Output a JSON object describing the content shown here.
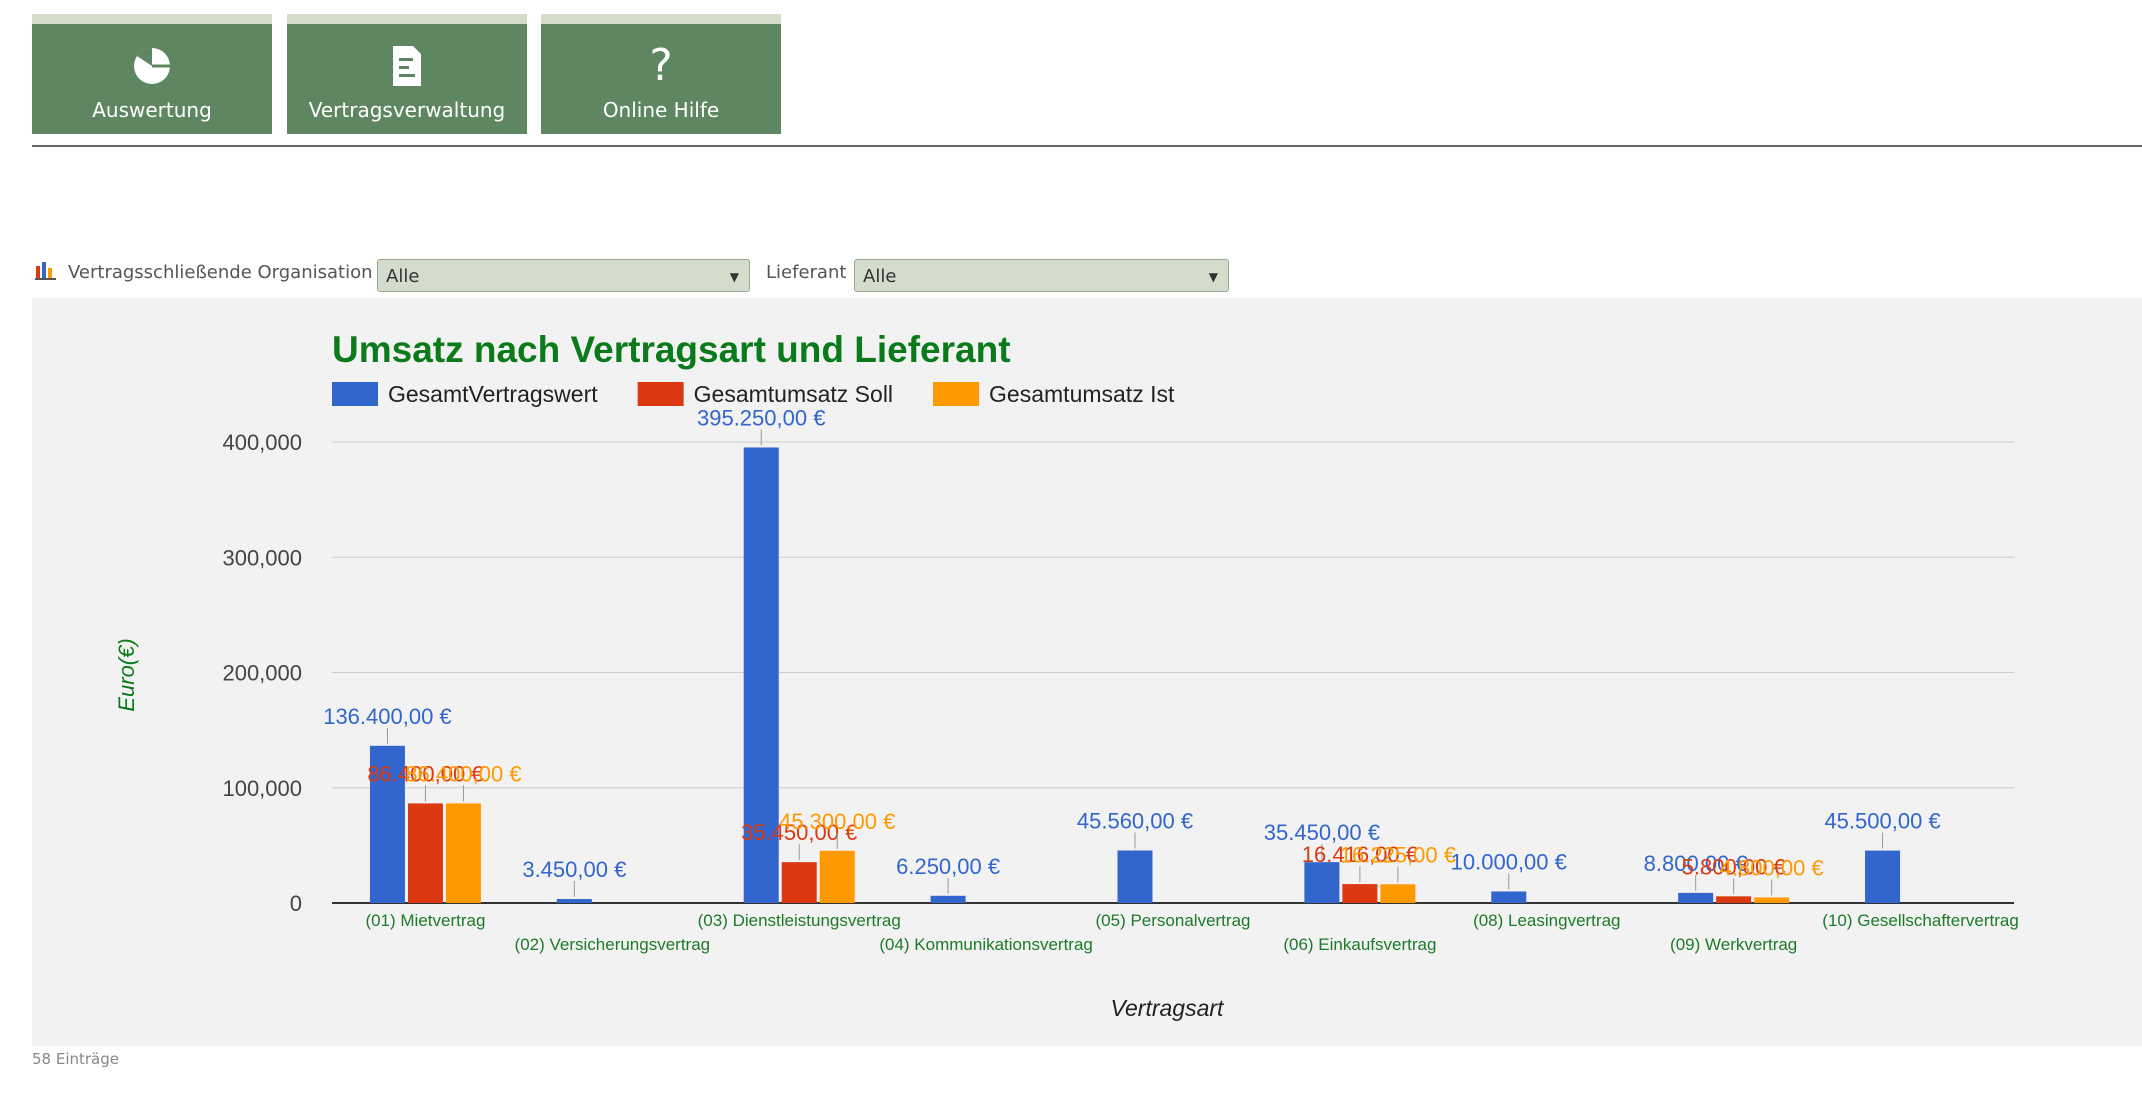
{
  "nav": {
    "tiles": [
      {
        "label": "Auswertung",
        "icon": "pie-chart-icon"
      },
      {
        "label": "Vertragsverwaltung",
        "icon": "document-list-icon"
      },
      {
        "label": "Online Hilfe",
        "icon": "question-mark-icon"
      }
    ]
  },
  "filters": {
    "icon": "bar-chart-icon",
    "organisation_label": "Vertragsschließende Organisation",
    "organisation_value": "Alle",
    "lieferant_label": "Lieferant",
    "lieferant_value": "Alle"
  },
  "colors": {
    "tile": "#5e8660",
    "tile_top": "#d3ddc9",
    "title": "#0a7a1a",
    "axis_label": "#0a7a1a",
    "category_label": "#1e7a2a"
  },
  "chart_data": {
    "type": "bar",
    "title": "Umsatz nach Vertragsart und Lieferant",
    "xlabel": "Vertragsart",
    "ylabel": "Euro(€)",
    "ylim": [
      0,
      400000
    ],
    "yticks": [
      "0",
      "100,000",
      "200,000",
      "300,000",
      "400,000"
    ],
    "grid": true,
    "legend_position": "top-left",
    "categories": [
      "(01) Mietvertrag",
      "(02) Versicherungsvertrag",
      "(03) Dienstleistungsvertrag",
      "(04) Kommunikationsvertrag",
      "(05) Personalvertrag",
      "(06) Einkaufsvertrag",
      "(08) Leasingvertrag",
      "(09) Werkvertrag",
      "(10) Gesellschaftervertrag"
    ],
    "series": [
      {
        "name": "GesamtVertragswert",
        "color": "#3366cc",
        "values": [
          136400,
          3450,
          395250,
          6250,
          45560,
          35450,
          10000,
          8800,
          45500
        ],
        "labels": [
          "136.400,00 €",
          "3.450,00 €",
          "395.250,00 €",
          "6.250,00 €",
          "45.560,00 €",
          "35.450,00 €",
          "10.000,00 €",
          "8.800,00 €",
          "45.500,00 €"
        ]
      },
      {
        "name": "Gesamtumsatz Soll",
        "color": "#dc3912",
        "values": [
          86400,
          null,
          35450,
          null,
          null,
          16416,
          null,
          5800,
          null
        ],
        "labels": [
          "86.400,00 €",
          "",
          "35.450,00 €",
          "",
          "",
          "16.416,00 €",
          "",
          "5.800,00 €",
          ""
        ]
      },
      {
        "name": "Gesamtumsatz Ist",
        "color": "#ff9900",
        "values": [
          86400,
          null,
          45300,
          null,
          null,
          16225,
          null,
          4800,
          null
        ],
        "labels": [
          "86.400,00 €",
          "",
          "45.300,00 €",
          "",
          "",
          "16.225,00 €",
          "",
          "4.800,00 €",
          ""
        ]
      }
    ]
  },
  "footer": {
    "entries": "58 Einträge"
  }
}
